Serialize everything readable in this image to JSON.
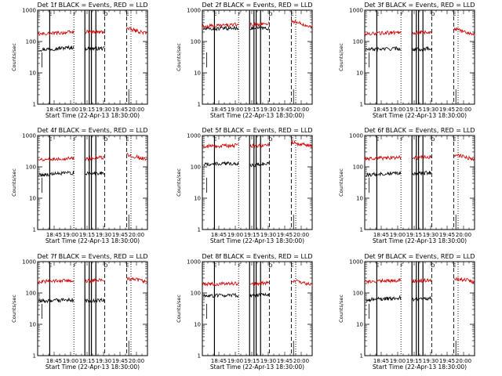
{
  "chart_data": [
    {
      "type": "line",
      "title": "Det 1f BLACK = Events, RED = LLD",
      "ylabel": "Counts/sec",
      "xlabel": "Start Time (22-Apr-13 18:30:00)",
      "x_ticks": [
        "18:45",
        "19:00",
        "19:15",
        "19:30",
        "19:45",
        "20:00"
      ],
      "y_ticks": [
        "1",
        "10",
        "100",
        "1000"
      ],
      "yscale": "log",
      "ylim": [
        1,
        1000
      ],
      "xlim_minutes": [
        0,
        100
      ],
      "series": [
        {
          "color": "#000000",
          "segments": [
            {
              "x0": 1,
              "x1": 33,
              "y0": 55,
              "y1": 65
            },
            {
              "x0": 43,
              "x1": 61,
              "y0": 60,
              "y1": 60
            }
          ]
        },
        {
          "color": "#cc0000",
          "segments": [
            {
              "x0": 0,
              "x1": 33,
              "y0": 170,
              "y1": 200
            },
            {
              "x0": 43,
              "x1": 61,
              "y0": 200,
              "y1": 200
            },
            {
              "x0": 81,
              "x1": 100,
              "y0": 260,
              "y1": 180
            }
          ]
        }
      ],
      "vlines": [
        {
          "x": 11,
          "style": "solid",
          "label": "E"
        },
        {
          "x": 33,
          "style": "dotted",
          "label": "F"
        },
        {
          "x": 43,
          "style": "solid",
          "label": ""
        },
        {
          "x": 47,
          "style": "solid",
          "label": ""
        },
        {
          "x": 49,
          "style": "solid",
          "label": ""
        },
        {
          "x": 53,
          "style": "solid",
          "label": ""
        },
        {
          "x": 61,
          "style": "dashed",
          "label": "D"
        },
        {
          "x": 81,
          "style": "dashed",
          "label": "E"
        },
        {
          "x": 85,
          "style": "dotted",
          "label": ""
        }
      ]
    },
    {
      "type": "line",
      "title": "Det 2f BLACK = Events, RED = LLD",
      "ylabel": "Counts/sec",
      "xlabel": "Start Time (22-Apr-13 18:30:00)",
      "x_ticks": [
        "18:45",
        "19:00",
        "19:15",
        "19:30",
        "19:45",
        "20:00"
      ],
      "y_ticks": [
        "1",
        "10",
        "100",
        "1000"
      ],
      "yscale": "log",
      "ylim": [
        1,
        1000
      ],
      "xlim_minutes": [
        0,
        100
      ],
      "series": [
        {
          "color": "#000000",
          "segments": [
            {
              "x0": 1,
              "x1": 33,
              "y0": 250,
              "y1": 270
            },
            {
              "x0": 43,
              "x1": 61,
              "y0": 260,
              "y1": 270
            }
          ]
        },
        {
          "color": "#cc0000",
          "segments": [
            {
              "x0": 0,
              "x1": 33,
              "y0": 300,
              "y1": 350
            },
            {
              "x0": 43,
              "x1": 61,
              "y0": 340,
              "y1": 380
            },
            {
              "x0": 81,
              "x1": 100,
              "y0": 450,
              "y1": 300
            }
          ]
        }
      ],
      "vlines": [
        {
          "x": 11,
          "style": "solid",
          "label": "E"
        },
        {
          "x": 33,
          "style": "dotted",
          "label": "F"
        },
        {
          "x": 43,
          "style": "solid",
          "label": ""
        },
        {
          "x": 47,
          "style": "solid",
          "label": ""
        },
        {
          "x": 49,
          "style": "solid",
          "label": ""
        },
        {
          "x": 53,
          "style": "solid",
          "label": ""
        },
        {
          "x": 61,
          "style": "dashed",
          "label": "D"
        },
        {
          "x": 81,
          "style": "dashed",
          "label": "E"
        },
        {
          "x": 85,
          "style": "dotted",
          "label": ""
        }
      ]
    },
    {
      "type": "line",
      "title": "Det 3f BLACK = Events, RED = LLD",
      "ylabel": "Counts/sec",
      "xlabel": "Start Time (22-Apr-13 18:30:00)",
      "x_ticks": [
        "18:45",
        "19:00",
        "19:15",
        "19:30",
        "19:45",
        "20:00"
      ],
      "y_ticks": [
        "1",
        "10",
        "100",
        "1000"
      ],
      "yscale": "log",
      "ylim": [
        1,
        1000
      ],
      "xlim_minutes": [
        0,
        100
      ],
      "series": [
        {
          "color": "#000000",
          "segments": [
            {
              "x0": 1,
              "x1": 33,
              "y0": 55,
              "y1": 60
            },
            {
              "x0": 43,
              "x1": 61,
              "y0": 55,
              "y1": 60
            }
          ]
        },
        {
          "color": "#cc0000",
          "segments": [
            {
              "x0": 0,
              "x1": 33,
              "y0": 170,
              "y1": 200
            },
            {
              "x0": 43,
              "x1": 61,
              "y0": 190,
              "y1": 200
            },
            {
              "x0": 81,
              "x1": 100,
              "y0": 250,
              "y1": 170
            }
          ]
        }
      ],
      "vlines": [
        {
          "x": 11,
          "style": "solid",
          "label": "E"
        },
        {
          "x": 33,
          "style": "dotted",
          "label": "F"
        },
        {
          "x": 43,
          "style": "solid",
          "label": ""
        },
        {
          "x": 47,
          "style": "solid",
          "label": ""
        },
        {
          "x": 49,
          "style": "solid",
          "label": ""
        },
        {
          "x": 53,
          "style": "solid",
          "label": ""
        },
        {
          "x": 61,
          "style": "dashed",
          "label": "D"
        },
        {
          "x": 81,
          "style": "dashed",
          "label": "E"
        },
        {
          "x": 85,
          "style": "dotted",
          "label": ""
        }
      ]
    },
    {
      "type": "line",
      "title": "Det 4f BLACK = Events, RED = LLD",
      "ylabel": "Counts/sec",
      "xlabel": "Start Time (22-Apr-13 18:30:00)",
      "x_ticks": [
        "18:45",
        "19:00",
        "19:15",
        "19:30",
        "19:45",
        "20:00"
      ],
      "y_ticks": [
        "1",
        "10",
        "100",
        "1000"
      ],
      "yscale": "log",
      "ylim": [
        1,
        1000
      ],
      "xlim_minutes": [
        0,
        100
      ],
      "series": [
        {
          "color": "#000000",
          "segments": [
            {
              "x0": 1,
              "x1": 33,
              "y0": 55,
              "y1": 65
            },
            {
              "x0": 43,
              "x1": 61,
              "y0": 60,
              "y1": 65
            }
          ]
        },
        {
          "color": "#cc0000",
          "segments": [
            {
              "x0": 0,
              "x1": 33,
              "y0": 170,
              "y1": 190
            },
            {
              "x0": 43,
              "x1": 61,
              "y0": 180,
              "y1": 200
            },
            {
              "x0": 81,
              "x1": 100,
              "y0": 250,
              "y1": 170
            }
          ]
        }
      ],
      "vlines": [
        {
          "x": 11,
          "style": "solid",
          "label": "E"
        },
        {
          "x": 33,
          "style": "dotted",
          "label": "F"
        },
        {
          "x": 43,
          "style": "solid",
          "label": ""
        },
        {
          "x": 47,
          "style": "solid",
          "label": ""
        },
        {
          "x": 49,
          "style": "solid",
          "label": ""
        },
        {
          "x": 53,
          "style": "solid",
          "label": ""
        },
        {
          "x": 61,
          "style": "dashed",
          "label": "D"
        },
        {
          "x": 81,
          "style": "dashed",
          "label": "E"
        },
        {
          "x": 85,
          "style": "dotted",
          "label": ""
        }
      ]
    },
    {
      "type": "line",
      "title": "Det 5f BLACK = Events, RED = LLD",
      "ylabel": "Counts/sec",
      "xlabel": "Start Time (22-Apr-13 18:30:00)",
      "x_ticks": [
        "18:45",
        "19:00",
        "19:15",
        "19:30",
        "19:45",
        "20:00"
      ],
      "y_ticks": [
        "1",
        "10",
        "100",
        "1000"
      ],
      "yscale": "log",
      "ylim": [
        1,
        1000
      ],
      "xlim_minutes": [
        0,
        100
      ],
      "series": [
        {
          "color": "#000000",
          "segments": [
            {
              "x0": 1,
              "x1": 33,
              "y0": 120,
              "y1": 130
            },
            {
              "x0": 43,
              "x1": 61,
              "y0": 110,
              "y1": 130
            }
          ]
        },
        {
          "color": "#cc0000",
          "segments": [
            {
              "x0": 0,
              "x1": 33,
              "y0": 450,
              "y1": 480
            },
            {
              "x0": 43,
              "x1": 61,
              "y0": 470,
              "y1": 500
            },
            {
              "x0": 81,
              "x1": 100,
              "y0": 600,
              "y1": 450
            }
          ]
        }
      ],
      "vlines": [
        {
          "x": 11,
          "style": "solid",
          "label": "E"
        },
        {
          "x": 33,
          "style": "dotted",
          "label": "F"
        },
        {
          "x": 43,
          "style": "solid",
          "label": ""
        },
        {
          "x": 47,
          "style": "solid",
          "label": ""
        },
        {
          "x": 49,
          "style": "solid",
          "label": ""
        },
        {
          "x": 53,
          "style": "solid",
          "label": ""
        },
        {
          "x": 61,
          "style": "dashed",
          "label": "D"
        },
        {
          "x": 81,
          "style": "dashed",
          "label": "E"
        },
        {
          "x": 85,
          "style": "dotted",
          "label": ""
        }
      ]
    },
    {
      "type": "line",
      "title": "Det 6f BLACK = Events, RED = LLD",
      "ylabel": "Counts/sec",
      "xlabel": "Start Time (22-Apr-13 18:30:00)",
      "x_ticks": [
        "18:45",
        "19:00",
        "19:15",
        "19:30",
        "19:45",
        "20:00"
      ],
      "y_ticks": [
        "1",
        "10",
        "100",
        "1000"
      ],
      "yscale": "log",
      "ylim": [
        1,
        1000
      ],
      "xlim_minutes": [
        0,
        100
      ],
      "series": [
        {
          "color": "#000000",
          "segments": [
            {
              "x0": 1,
              "x1": 33,
              "y0": 55,
              "y1": 65
            },
            {
              "x0": 43,
              "x1": 61,
              "y0": 60,
              "y1": 65
            }
          ]
        },
        {
          "color": "#cc0000",
          "segments": [
            {
              "x0": 0,
              "x1": 33,
              "y0": 180,
              "y1": 200
            },
            {
              "x0": 43,
              "x1": 61,
              "y0": 190,
              "y1": 210
            },
            {
              "x0": 81,
              "x1": 100,
              "y0": 250,
              "y1": 170
            }
          ]
        }
      ],
      "vlines": [
        {
          "x": 11,
          "style": "solid",
          "label": "E"
        },
        {
          "x": 33,
          "style": "dotted",
          "label": "F"
        },
        {
          "x": 43,
          "style": "solid",
          "label": ""
        },
        {
          "x": 47,
          "style": "solid",
          "label": ""
        },
        {
          "x": 49,
          "style": "solid",
          "label": ""
        },
        {
          "x": 53,
          "style": "solid",
          "label": ""
        },
        {
          "x": 61,
          "style": "dashed",
          "label": "D"
        },
        {
          "x": 81,
          "style": "dashed",
          "label": "E"
        },
        {
          "x": 85,
          "style": "dotted",
          "label": ""
        }
      ]
    },
    {
      "type": "line",
      "title": "Det 7f BLACK = Events, RED = LLD",
      "ylabel": "Counts/sec",
      "xlabel": "Start Time (22-Apr-13 18:30:00)",
      "x_ticks": [
        "18:45",
        "19:00",
        "19:15",
        "19:30",
        "19:45",
        "20:00"
      ],
      "y_ticks": [
        "1",
        "10",
        "100",
        "1000"
      ],
      "yscale": "log",
      "ylim": [
        1,
        1000
      ],
      "xlim_minutes": [
        0,
        100
      ],
      "series": [
        {
          "color": "#000000",
          "segments": [
            {
              "x0": 1,
              "x1": 33,
              "y0": 55,
              "y1": 60
            },
            {
              "x0": 43,
              "x1": 61,
              "y0": 55,
              "y1": 60
            }
          ]
        },
        {
          "color": "#cc0000",
          "segments": [
            {
              "x0": 0,
              "x1": 33,
              "y0": 230,
              "y1": 250
            },
            {
              "x0": 43,
              "x1": 61,
              "y0": 240,
              "y1": 260
            },
            {
              "x0": 81,
              "x1": 100,
              "y0": 300,
              "y1": 230
            }
          ]
        }
      ],
      "vlines": [
        {
          "x": 11,
          "style": "solid",
          "label": "E"
        },
        {
          "x": 33,
          "style": "dotted",
          "label": "F"
        },
        {
          "x": 43,
          "style": "solid",
          "label": ""
        },
        {
          "x": 47,
          "style": "solid",
          "label": ""
        },
        {
          "x": 49,
          "style": "solid",
          "label": ""
        },
        {
          "x": 53,
          "style": "solid",
          "label": ""
        },
        {
          "x": 61,
          "style": "dashed",
          "label": "D"
        },
        {
          "x": 81,
          "style": "dashed",
          "label": "E"
        },
        {
          "x": 85,
          "style": "dotted",
          "label": ""
        }
      ]
    },
    {
      "type": "line",
      "title": "Det 8f BLACK = Events, RED = LLD",
      "ylabel": "Counts/sec",
      "xlabel": "Start Time (22-Apr-13 18:30:00)",
      "x_ticks": [
        "18:45",
        "19:00",
        "19:15",
        "19:30",
        "19:45",
        "20:00"
      ],
      "y_ticks": [
        "1",
        "10",
        "100",
        "1000"
      ],
      "yscale": "log",
      "ylim": [
        1,
        1000
      ],
      "xlim_minutes": [
        0,
        100
      ],
      "series": [
        {
          "color": "#000000",
          "segments": [
            {
              "x0": 1,
              "x1": 33,
              "y0": 80,
              "y1": 85
            },
            {
              "x0": 43,
              "x1": 61,
              "y0": 80,
              "y1": 90
            }
          ]
        },
        {
          "color": "#cc0000",
          "segments": [
            {
              "x0": 0,
              "x1": 33,
              "y0": 190,
              "y1": 200
            },
            {
              "x0": 43,
              "x1": 61,
              "y0": 190,
              "y1": 210
            },
            {
              "x0": 81,
              "x1": 100,
              "y0": 260,
              "y1": 180
            }
          ]
        }
      ],
      "vlines": [
        {
          "x": 11,
          "style": "solid",
          "label": "E"
        },
        {
          "x": 33,
          "style": "dotted",
          "label": "F"
        },
        {
          "x": 43,
          "style": "solid",
          "label": ""
        },
        {
          "x": 47,
          "style": "solid",
          "label": ""
        },
        {
          "x": 49,
          "style": "solid",
          "label": ""
        },
        {
          "x": 53,
          "style": "solid",
          "label": ""
        },
        {
          "x": 61,
          "style": "dashed",
          "label": "D"
        },
        {
          "x": 81,
          "style": "dashed",
          "label": "E"
        },
        {
          "x": 85,
          "style": "dotted",
          "label": ""
        }
      ]
    },
    {
      "type": "line",
      "title": "Det 9f BLACK = Events, RED = LLD",
      "ylabel": "Counts/sec",
      "xlabel": "Start Time (22-Apr-13 18:30:00)",
      "x_ticks": [
        "18:45",
        "19:00",
        "19:15",
        "19:30",
        "19:45",
        "20:00"
      ],
      "y_ticks": [
        "1",
        "10",
        "100",
        "1000"
      ],
      "yscale": "log",
      "ylim": [
        1,
        1000
      ],
      "xlim_minutes": [
        0,
        100
      ],
      "series": [
        {
          "color": "#000000",
          "segments": [
            {
              "x0": 1,
              "x1": 33,
              "y0": 60,
              "y1": 70
            },
            {
              "x0": 43,
              "x1": 61,
              "y0": 60,
              "y1": 70
            }
          ]
        },
        {
          "color": "#cc0000",
          "segments": [
            {
              "x0": 0,
              "x1": 33,
              "y0": 230,
              "y1": 250
            },
            {
              "x0": 43,
              "x1": 61,
              "y0": 240,
              "y1": 260
            },
            {
              "x0": 81,
              "x1": 100,
              "y0": 300,
              "y1": 230
            }
          ]
        }
      ],
      "vlines": [
        {
          "x": 11,
          "style": "solid",
          "label": "E"
        },
        {
          "x": 33,
          "style": "dotted",
          "label": "F"
        },
        {
          "x": 43,
          "style": "solid",
          "label": ""
        },
        {
          "x": 47,
          "style": "solid",
          "label": ""
        },
        {
          "x": 49,
          "style": "solid",
          "label": ""
        },
        {
          "x": 53,
          "style": "solid",
          "label": ""
        },
        {
          "x": 61,
          "style": "dashed",
          "label": "D"
        },
        {
          "x": 81,
          "style": "dashed",
          "label": "E"
        },
        {
          "x": 85,
          "style": "dotted",
          "label": ""
        }
      ]
    }
  ]
}
